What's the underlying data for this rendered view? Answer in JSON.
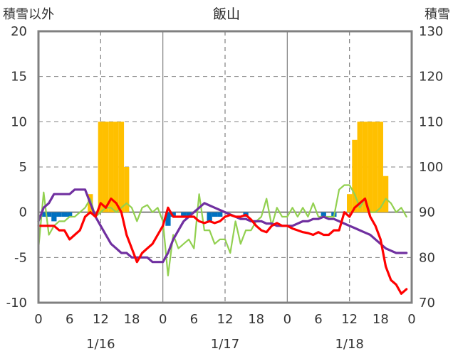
{
  "chart_data": {
    "type": "bar+line",
    "title": "飯山",
    "left_axis_label": "積雪以外",
    "right_axis_label": "積雪",
    "ylim_left": [
      -10,
      20
    ],
    "ylim_right": [
      70,
      130
    ],
    "yticks_left": [
      "20",
      "15",
      "10",
      "5",
      "0",
      "-5",
      "-10"
    ],
    "yticks_right": [
      "130",
      "120",
      "110",
      "100",
      "90",
      "80",
      "70"
    ],
    "x_hours_total": 72,
    "xticks": [
      "0",
      "6",
      "12",
      "18",
      "0",
      "6",
      "12",
      "18",
      "0",
      "6",
      "12",
      "18",
      "0"
    ],
    "date_labels": [
      "1/16",
      "1/17",
      "1/18"
    ],
    "grid": "dashed vertical at 12h and 18h marks, solid at day boundaries, solid zero line",
    "colors": {
      "snowfall_positive": "#ffc000",
      "snowfall_negative": "#0070c0",
      "temperature": "#ff0000",
      "snow_depth": "#7030a0",
      "wind": "#92d050",
      "axis": "#808080",
      "grid": "#808080"
    },
    "series": [
      {
        "kind": "bar",
        "axis": "left",
        "color_key": "snowfall",
        "x": [
          1,
          2,
          3,
          4,
          5,
          6,
          7,
          8,
          9,
          10,
          11,
          12,
          13,
          14,
          15,
          16,
          17,
          18,
          19,
          20,
          21,
          22,
          23,
          24,
          25,
          26,
          27,
          28,
          29,
          30,
          31,
          32,
          33,
          34,
          35,
          36,
          37,
          38,
          39,
          40,
          41,
          42,
          43,
          44,
          45,
          46,
          47,
          48,
          49,
          50,
          51,
          52,
          53,
          54,
          55,
          56,
          57,
          58,
          59,
          60,
          61,
          62,
          63,
          64,
          65,
          66,
          67,
          68,
          69,
          70,
          71
        ],
        "values": [
          -0.5,
          -0.5,
          -1,
          -0.5,
          -0.5,
          -0.5,
          0,
          0,
          0,
          2,
          0,
          10,
          10,
          10,
          10,
          10,
          5,
          0,
          0,
          0,
          0,
          0,
          0,
          0,
          -1.5,
          -0.5,
          0,
          -0.5,
          -0.5,
          0,
          0,
          0,
          -1,
          -0.5,
          -0.5,
          0,
          0,
          0,
          0,
          -0.5,
          0,
          0,
          0,
          0,
          0,
          0,
          0,
          0,
          0,
          0,
          0,
          0,
          0,
          0,
          -0.5,
          0,
          -0.5,
          0,
          0,
          2,
          8,
          10,
          10,
          10,
          10,
          10,
          4,
          0,
          0,
          0,
          0
        ]
      },
      {
        "kind": "line",
        "axis": "left",
        "color_key": "temperature",
        "x": [
          0,
          1,
          2,
          3,
          4,
          5,
          6,
          7,
          8,
          9,
          10,
          11,
          12,
          13,
          14,
          15,
          16,
          17,
          18,
          19,
          20,
          21,
          22,
          23,
          24,
          25,
          26,
          27,
          28,
          29,
          30,
          31,
          32,
          33,
          34,
          35,
          36,
          37,
          38,
          39,
          40,
          41,
          42,
          43,
          44,
          45,
          46,
          47,
          48,
          49,
          50,
          51,
          52,
          53,
          54,
          55,
          56,
          57,
          58,
          59,
          60,
          61,
          62,
          63,
          64,
          65,
          66,
          67,
          68,
          69,
          70,
          71
        ],
        "values": [
          -1.5,
          -1.5,
          -1.5,
          -1.5,
          -2,
          -2,
          -3,
          -2.5,
          -2,
          -0.5,
          0,
          -0.5,
          1,
          0.5,
          1.5,
          1,
          0,
          -2.5,
          -4,
          -5.5,
          -4.5,
          -4,
          -3.5,
          -2.5,
          -1.5,
          0.5,
          -0.5,
          -0.5,
          -0.5,
          -0.5,
          -0.5,
          -1,
          -1.2,
          -1,
          -1.2,
          -1,
          -0.5,
          -0.3,
          -0.5,
          -0.5,
          -0.3,
          -0.8,
          -1.5,
          -2,
          -2.2,
          -1.5,
          -1.2,
          -1.5,
          -1.5,
          -1.8,
          -2,
          -2.2,
          -2.3,
          -2.5,
          -2.2,
          -2.5,
          -2.5,
          -2,
          -2,
          0,
          -0.5,
          0.5,
          1,
          1.5,
          -0.5,
          -1.5,
          -3,
          -6,
          -7.5,
          -8,
          -9,
          -8.5
        ]
      },
      {
        "kind": "line",
        "axis": "right",
        "color_key": "snow_depth",
        "x": [
          0,
          1,
          2,
          3,
          4,
          5,
          6,
          7,
          8,
          9,
          10,
          11,
          12,
          13,
          14,
          15,
          16,
          17,
          18,
          19,
          20,
          21,
          22,
          23,
          24,
          25,
          26,
          27,
          28,
          29,
          30,
          31,
          32,
          33,
          34,
          35,
          36,
          37,
          38,
          39,
          40,
          41,
          42,
          43,
          44,
          45,
          46,
          47,
          48,
          49,
          50,
          51,
          52,
          53,
          54,
          55,
          56,
          57,
          58,
          59,
          60,
          61,
          62,
          63,
          64,
          65,
          66,
          67,
          68,
          69,
          70,
          71
        ],
        "values": [
          88,
          91,
          92,
          94,
          94,
          94,
          94,
          95,
          95,
          95,
          92,
          89,
          87,
          85,
          83,
          82,
          81,
          81,
          80,
          80,
          80,
          80,
          79,
          79,
          79,
          81,
          84,
          86,
          88,
          89,
          90,
          91,
          92,
          91.5,
          91,
          90.5,
          90,
          89.5,
          89,
          88.5,
          88.5,
          88,
          88,
          88,
          87.5,
          87.5,
          87,
          87,
          87,
          87,
          87.5,
          88,
          88,
          88.5,
          88.5,
          89,
          88.5,
          88.5,
          88,
          87.5,
          87,
          86.5,
          86,
          85.5,
          85,
          84,
          83,
          82,
          81.5,
          81,
          81,
          81
        ]
      },
      {
        "kind": "line",
        "axis": "left",
        "color_key": "wind",
        "x": [
          0,
          1,
          2,
          3,
          4,
          5,
          6,
          7,
          8,
          9,
          10,
          11,
          12,
          13,
          14,
          15,
          16,
          17,
          18,
          19,
          20,
          21,
          22,
          23,
          24,
          25,
          26,
          27,
          28,
          29,
          30,
          31,
          32,
          33,
          34,
          35,
          36,
          37,
          38,
          39,
          40,
          41,
          42,
          43,
          44,
          45,
          46,
          47,
          48,
          49,
          50,
          51,
          52,
          53,
          54,
          55,
          56,
          57,
          58,
          59,
          60,
          61,
          62,
          63,
          64,
          65,
          66,
          67,
          68,
          69,
          70,
          71
        ],
        "values": [
          -4,
          2.2,
          -2.5,
          -1.5,
          -1,
          -1,
          -0.5,
          -0.5,
          0,
          0.5,
          1.5,
          -0.5,
          0,
          0.5,
          0.5,
          0,
          0.5,
          1,
          0.5,
          -1,
          0.5,
          0.8,
          0,
          0.5,
          -1,
          -7,
          -2.5,
          -4,
          -3.5,
          -3,
          -4,
          2,
          -2,
          -2,
          -3.5,
          -3,
          -3,
          -4.5,
          -1,
          -3.5,
          -2,
          -2,
          -1,
          -0.5,
          1.5,
          -1.5,
          0.5,
          -0.5,
          -0.5,
          0.5,
          -0.5,
          0.5,
          -0.5,
          1,
          -0.5,
          -0.5,
          -0.5,
          -0.5,
          2.5,
          3,
          3,
          2,
          0.5,
          1.5,
          0,
          0,
          0.5,
          1.5,
          1,
          0,
          0.5,
          -0.5
        ]
      }
    ]
  }
}
